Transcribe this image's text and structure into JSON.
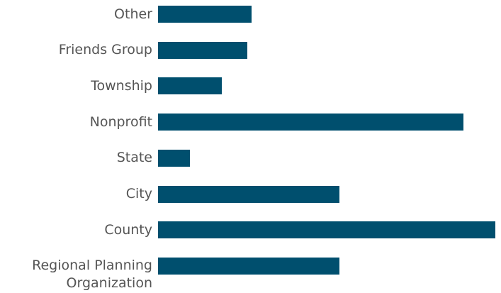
{
  "chart_data": {
    "type": "bar",
    "orientation": "horizontal",
    "categories": [
      "Other",
      "Friends Group",
      "Township",
      "Nonprofit",
      "State",
      "City",
      "County",
      "Regional Planning Organization"
    ],
    "values": [
      5.9,
      5.6,
      4,
      19.2,
      2,
      11.4,
      21.2,
      11.4
    ],
    "color": "#004f6e"
  }
}
